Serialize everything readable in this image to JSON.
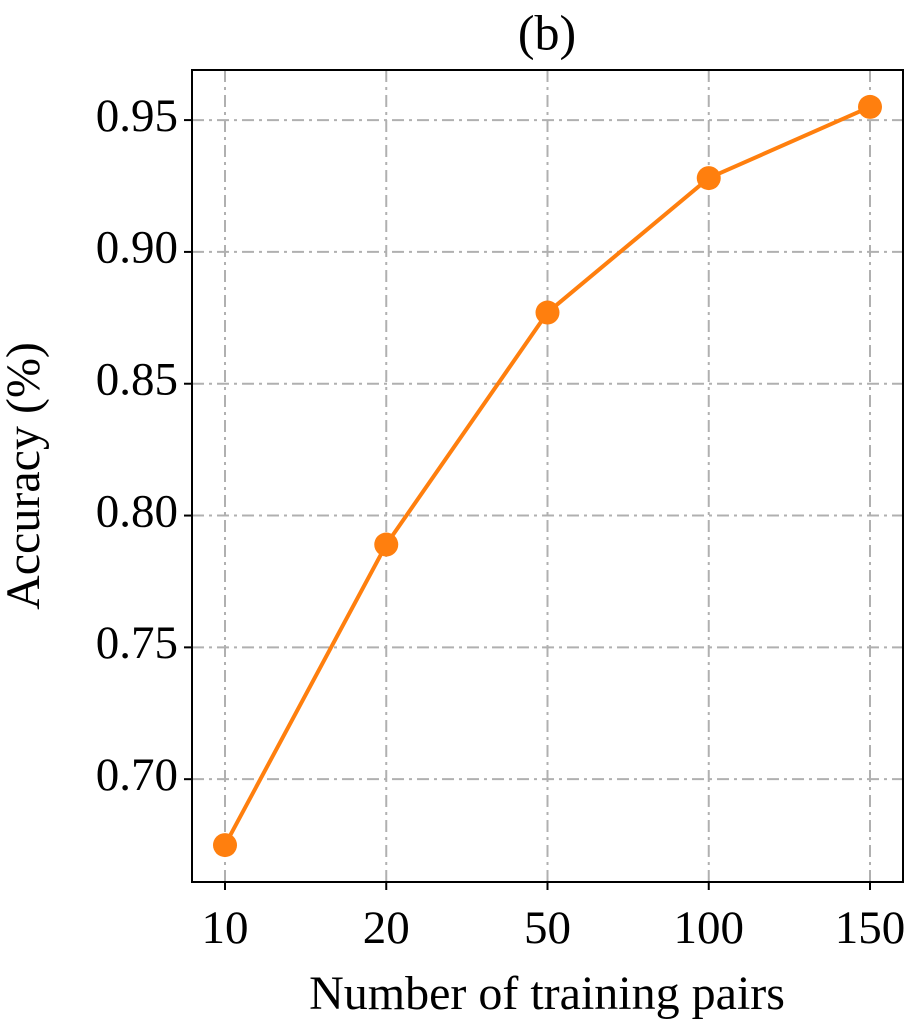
{
  "chart_data": {
    "type": "line",
    "title": "(b)",
    "x_label": "Number of training pairs",
    "y_label": "Accuracy (%)",
    "categories": [
      "10",
      "20",
      "50",
      "100",
      "150"
    ],
    "series": [
      {
        "name": "Accuracy",
        "color": "#ff7f0e",
        "values": [
          0.675,
          0.789,
          0.877,
          0.928,
          0.955
        ]
      }
    ],
    "ylim": [
      0.661,
      0.969
    ],
    "yticks": [
      {
        "value": 0.7,
        "label": "0.70"
      },
      0.75,
      {
        "value": 0.8,
        "label": "0.80"
      },
      0.85,
      {
        "value": 0.9,
        "label": "0.90"
      },
      0.95
    ],
    "grid": true
  }
}
